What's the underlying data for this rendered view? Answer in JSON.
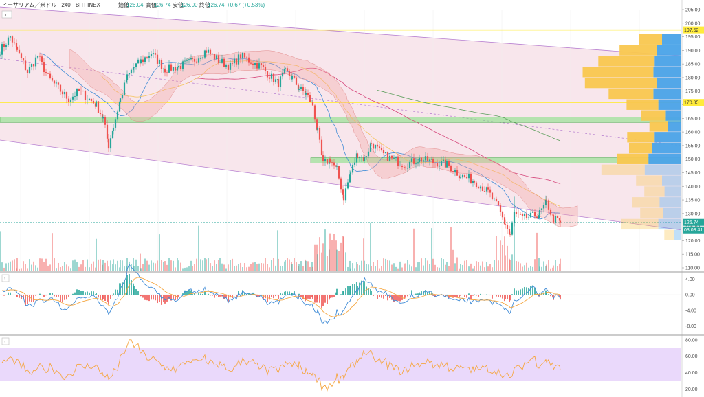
{
  "header": {
    "symbol": "イーサリアム／米ドル · 240 · BITFINEX",
    "open_label": "始値",
    "open": "126.04",
    "high_label": "高値",
    "high": "126.74",
    "low_label": "安値",
    "low": "126.00",
    "close_label": "終値",
    "close": "126.74",
    "change": "+0.67 (+0.53%)"
  },
  "colors": {
    "up": "#26a69a",
    "down": "#ef5350",
    "yellow": "#ffeb3b",
    "green_zone": "#7ee07e",
    "channel": "#b77fd0",
    "pink_bg": "#f6dde6",
    "vp_blue": "#4aa3e8",
    "vp_orange": "#f9c74f",
    "macd_line": "#3f8bd6",
    "signal_line": "#f5a742",
    "rsi_line": "#f5a742",
    "rsi_band": "#ead9fb"
  },
  "price_axis": {
    "min": 107,
    "max": 207,
    "ticks": [
      "205.00",
      "200.00",
      "195.00",
      "190.00",
      "185.00",
      "180.00",
      "175.00",
      "170.00",
      "165.00",
      "160.00",
      "155.00",
      "150.00",
      "145.00",
      "140.00",
      "135.00",
      "130.00",
      "125.00",
      "120.00",
      "115.00",
      "110.00"
    ],
    "level_high": "197.52",
    "level_mid": "170.85",
    "last_price": "126.74",
    "countdown": "03:03:41"
  },
  "macd_axis": {
    "ticks": [
      "4.00",
      "0.00",
      "-4.00",
      "-8.00"
    ]
  },
  "rsi_axis": {
    "ticks": [
      "80.00",
      "60.00",
      "40.00",
      "20.00"
    ]
  },
  "chart_data": {
    "type": "candlestick",
    "levels": {
      "horizontal_high": 197.52,
      "horizontal_mid": 170.85,
      "zone_1": [
        163.5,
        165.5
      ],
      "zone_2": [
        148.5,
        150.5
      ]
    },
    "path": [
      [
        0,
        190
      ],
      [
        15,
        195
      ],
      [
        25,
        190
      ],
      [
        40,
        182
      ],
      [
        55,
        188
      ],
      [
        70,
        180
      ],
      [
        85,
        176
      ],
      [
        100,
        172
      ],
      [
        115,
        175
      ],
      [
        130,
        172
      ],
      [
        140,
        170
      ],
      [
        150,
        165
      ],
      [
        158,
        155
      ],
      [
        165,
        162
      ],
      [
        175,
        172
      ],
      [
        185,
        180
      ],
      [
        195,
        184
      ],
      [
        205,
        186
      ],
      [
        220,
        189
      ],
      [
        240,
        183
      ],
      [
        260,
        184
      ],
      [
        280,
        186
      ],
      [
        300,
        190
      ],
      [
        320,
        186
      ],
      [
        335,
        184
      ],
      [
        350,
        188
      ],
      [
        365,
        186
      ],
      [
        380,
        184
      ],
      [
        395,
        180
      ],
      [
        405,
        178
      ],
      [
        415,
        182
      ],
      [
        425,
        180
      ],
      [
        435,
        176
      ],
      [
        445,
        174
      ],
      [
        455,
        170
      ],
      [
        462,
        160
      ],
      [
        470,
        148
      ],
      [
        480,
        150
      ],
      [
        490,
        146
      ],
      [
        500,
        136
      ],
      [
        510,
        145
      ],
      [
        520,
        152
      ],
      [
        530,
        150
      ],
      [
        540,
        156
      ],
      [
        555,
        152
      ],
      [
        570,
        150
      ],
      [
        590,
        148
      ],
      [
        610,
        150
      ],
      [
        630,
        149
      ],
      [
        650,
        148
      ],
      [
        670,
        144
      ],
      [
        690,
        142
      ],
      [
        710,
        138
      ],
      [
        725,
        132
      ],
      [
        735,
        126
      ],
      [
        742,
        122
      ],
      [
        748,
        130
      ],
      [
        760,
        128
      ],
      [
        775,
        129
      ],
      [
        785,
        130
      ],
      [
        795,
        134
      ],
      [
        805,
        128
      ],
      [
        815,
        126.74
      ]
    ],
    "volume_profile": [
      {
        "price": 194,
        "buy": 32,
        "sell": 30
      },
      {
        "price": 190,
        "buy": 52,
        "sell": 38
      },
      {
        "price": 186,
        "buy": 78,
        "sell": 42
      },
      {
        "price": 182,
        "buy": 98,
        "sell": 44
      },
      {
        "price": 178,
        "buy": 100,
        "sell": 38
      },
      {
        "price": 174,
        "buy": 62,
        "sell": 44
      },
      {
        "price": 170,
        "buy": 44,
        "sell": 36
      },
      {
        "price": 166,
        "buy": 34,
        "sell": 24
      },
      {
        "price": 162,
        "buy": 26,
        "sell": 20
      },
      {
        "price": 158,
        "buy": 38,
        "sell": 42
      },
      {
        "price": 154,
        "buy": 32,
        "sell": 46
      },
      {
        "price": 150,
        "buy": 44,
        "sell": 52
      },
      {
        "price": 146,
        "buy": 60,
        "sell": 58
      },
      {
        "price": 142,
        "buy": 36,
        "sell": 30
      },
      {
        "price": 138,
        "buy": 28,
        "sell": 26
      },
      {
        "price": 134,
        "buy": 38,
        "sell": 34
      },
      {
        "price": 130,
        "buy": 32,
        "sell": 28
      },
      {
        "price": 126,
        "buy": 52,
        "sell": 36
      },
      {
        "price": 122,
        "buy": 14,
        "sell": 10
      }
    ],
    "macd_range": [
      -10,
      5.5
    ],
    "rsi_range": [
      12,
      84
    ],
    "rsi_bands": [
      70,
      30
    ]
  }
}
